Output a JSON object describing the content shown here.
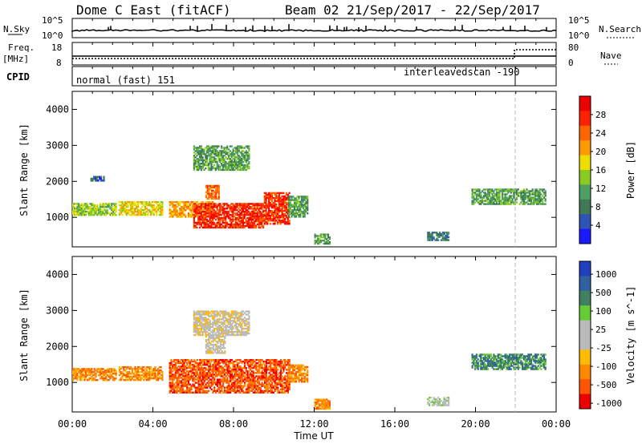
{
  "header": {
    "radar_title": "Dome C East (fitACF)",
    "beam_date": "Beam 02  21/Sep/2017 - 22/Sep/2017"
  },
  "nsky_panel": {
    "left_label": "N.Sky",
    "right_label": "N.Search",
    "left_ticks": [
      "10^5",
      "10^0"
    ],
    "right_ticks": [
      "10^5",
      "10^0"
    ]
  },
  "freq_panel": {
    "left_label_line1": "Freq.",
    "left_label_line2": "[MHz]",
    "right_label": "Nave",
    "left_ticks": [
      "18",
      "8"
    ],
    "right_ticks": [
      "80",
      "0"
    ]
  },
  "cpid_panel": {
    "label": "CPID",
    "program1": "normal (fast) 151",
    "program2": "interleavedscan -190",
    "switch_hour": 21.9
  },
  "colors": {
    "power": [
      "#1a1aff",
      "#2e55b5",
      "#3f7a55",
      "#4f9e62",
      "#88cc22",
      "#eedd00",
      "#ff9900",
      "#ff6600",
      "#ff2200",
      "#ee0000"
    ],
    "velocity": [
      "#ee0000",
      "#ff5500",
      "#ff8800",
      "#ffbb00",
      "#bbbbbb",
      "#bbbbbb",
      "#66cc33",
      "#3f8060",
      "#3060a0",
      "#2040c0"
    ]
  },
  "chart_data": [
    {
      "type": "heatmap",
      "name_panel": "power",
      "xlabel": "",
      "ylabel": "Slant Range [km]",
      "xlim": [
        0,
        24
      ],
      "ylim": [
        180,
        4500
      ],
      "yticks": [
        "1000",
        "2000",
        "3000",
        "4000"
      ],
      "colorbar_label": "Power [dB]",
      "colorbar_ticks": [
        "4",
        "8",
        "12",
        "16",
        "20",
        "24",
        "28"
      ],
      "regions": [
        {
          "x": [
            0.0,
            2.2
          ],
          "y": [
            1050,
            1400
          ],
          "level": 4
        },
        {
          "x": [
            2.3,
            4.5
          ],
          "y": [
            1050,
            1450
          ],
          "level": 5
        },
        {
          "x": [
            4.8,
            7.0
          ],
          "y": [
            1000,
            1450
          ],
          "level": 6
        },
        {
          "x": [
            6.0,
            9.5
          ],
          "y": [
            700,
            1400
          ],
          "level": 8
        },
        {
          "x": [
            9.5,
            10.8
          ],
          "y": [
            800,
            1700
          ],
          "level": 8
        },
        {
          "x": [
            6.6,
            7.3
          ],
          "y": [
            1500,
            1900
          ],
          "level": 7
        },
        {
          "x": [
            6.0,
            8.8
          ],
          "y": [
            2300,
            3000
          ],
          "level": 3
        },
        {
          "x": [
            10.7,
            11.7
          ],
          "y": [
            1000,
            1600
          ],
          "level": 3
        },
        {
          "x": [
            0.9,
            1.6
          ],
          "y": [
            2000,
            2150
          ],
          "level": 1
        },
        {
          "x": [
            12.0,
            12.8
          ],
          "y": [
            250,
            550
          ],
          "level": 3
        },
        {
          "x": [
            17.6,
            18.7
          ],
          "y": [
            350,
            600
          ],
          "level": 2
        },
        {
          "x": [
            19.8,
            23.5
          ],
          "y": [
            1350,
            1800
          ],
          "level": 3
        }
      ]
    },
    {
      "type": "heatmap",
      "name_panel": "velocity",
      "xlabel": "Time UT",
      "ylabel": "Slant Range [km]",
      "xlim": [
        0,
        24
      ],
      "ylim": [
        180,
        4500
      ],
      "yticks": [
        "1000",
        "2000",
        "3000",
        "4000"
      ],
      "xticks": [
        "00:00",
        "04:00",
        "08:00",
        "12:00",
        "16:00",
        "20:00",
        "00:00"
      ],
      "colorbar_label": "Velocity [m s^-1]",
      "colorbar_ticks": [
        "1000",
        "500",
        "100",
        "25",
        "-25",
        "-100",
        "-500",
        "-1000"
      ],
      "regions": [
        {
          "x": [
            0.0,
            2.2
          ],
          "y": [
            1050,
            1400
          ],
          "level": 2
        },
        {
          "x": [
            2.3,
            4.5
          ],
          "y": [
            1050,
            1450
          ],
          "level": 2
        },
        {
          "x": [
            4.8,
            10.8
          ],
          "y": [
            700,
            1650
          ],
          "level": 1
        },
        {
          "x": [
            6.0,
            8.8
          ],
          "y": [
            2300,
            3000
          ],
          "level": 4
        },
        {
          "x": [
            6.6,
            7.6
          ],
          "y": [
            1800,
            2300
          ],
          "level": 4
        },
        {
          "x": [
            10.7,
            11.7
          ],
          "y": [
            1000,
            1500
          ],
          "level": 2
        },
        {
          "x": [
            12.0,
            12.8
          ],
          "y": [
            250,
            550
          ],
          "level": 2
        },
        {
          "x": [
            17.6,
            18.7
          ],
          "y": [
            350,
            600
          ],
          "level": 5
        },
        {
          "x": [
            19.8,
            23.5
          ],
          "y": [
            1350,
            1800
          ],
          "level": 7
        }
      ]
    }
  ]
}
